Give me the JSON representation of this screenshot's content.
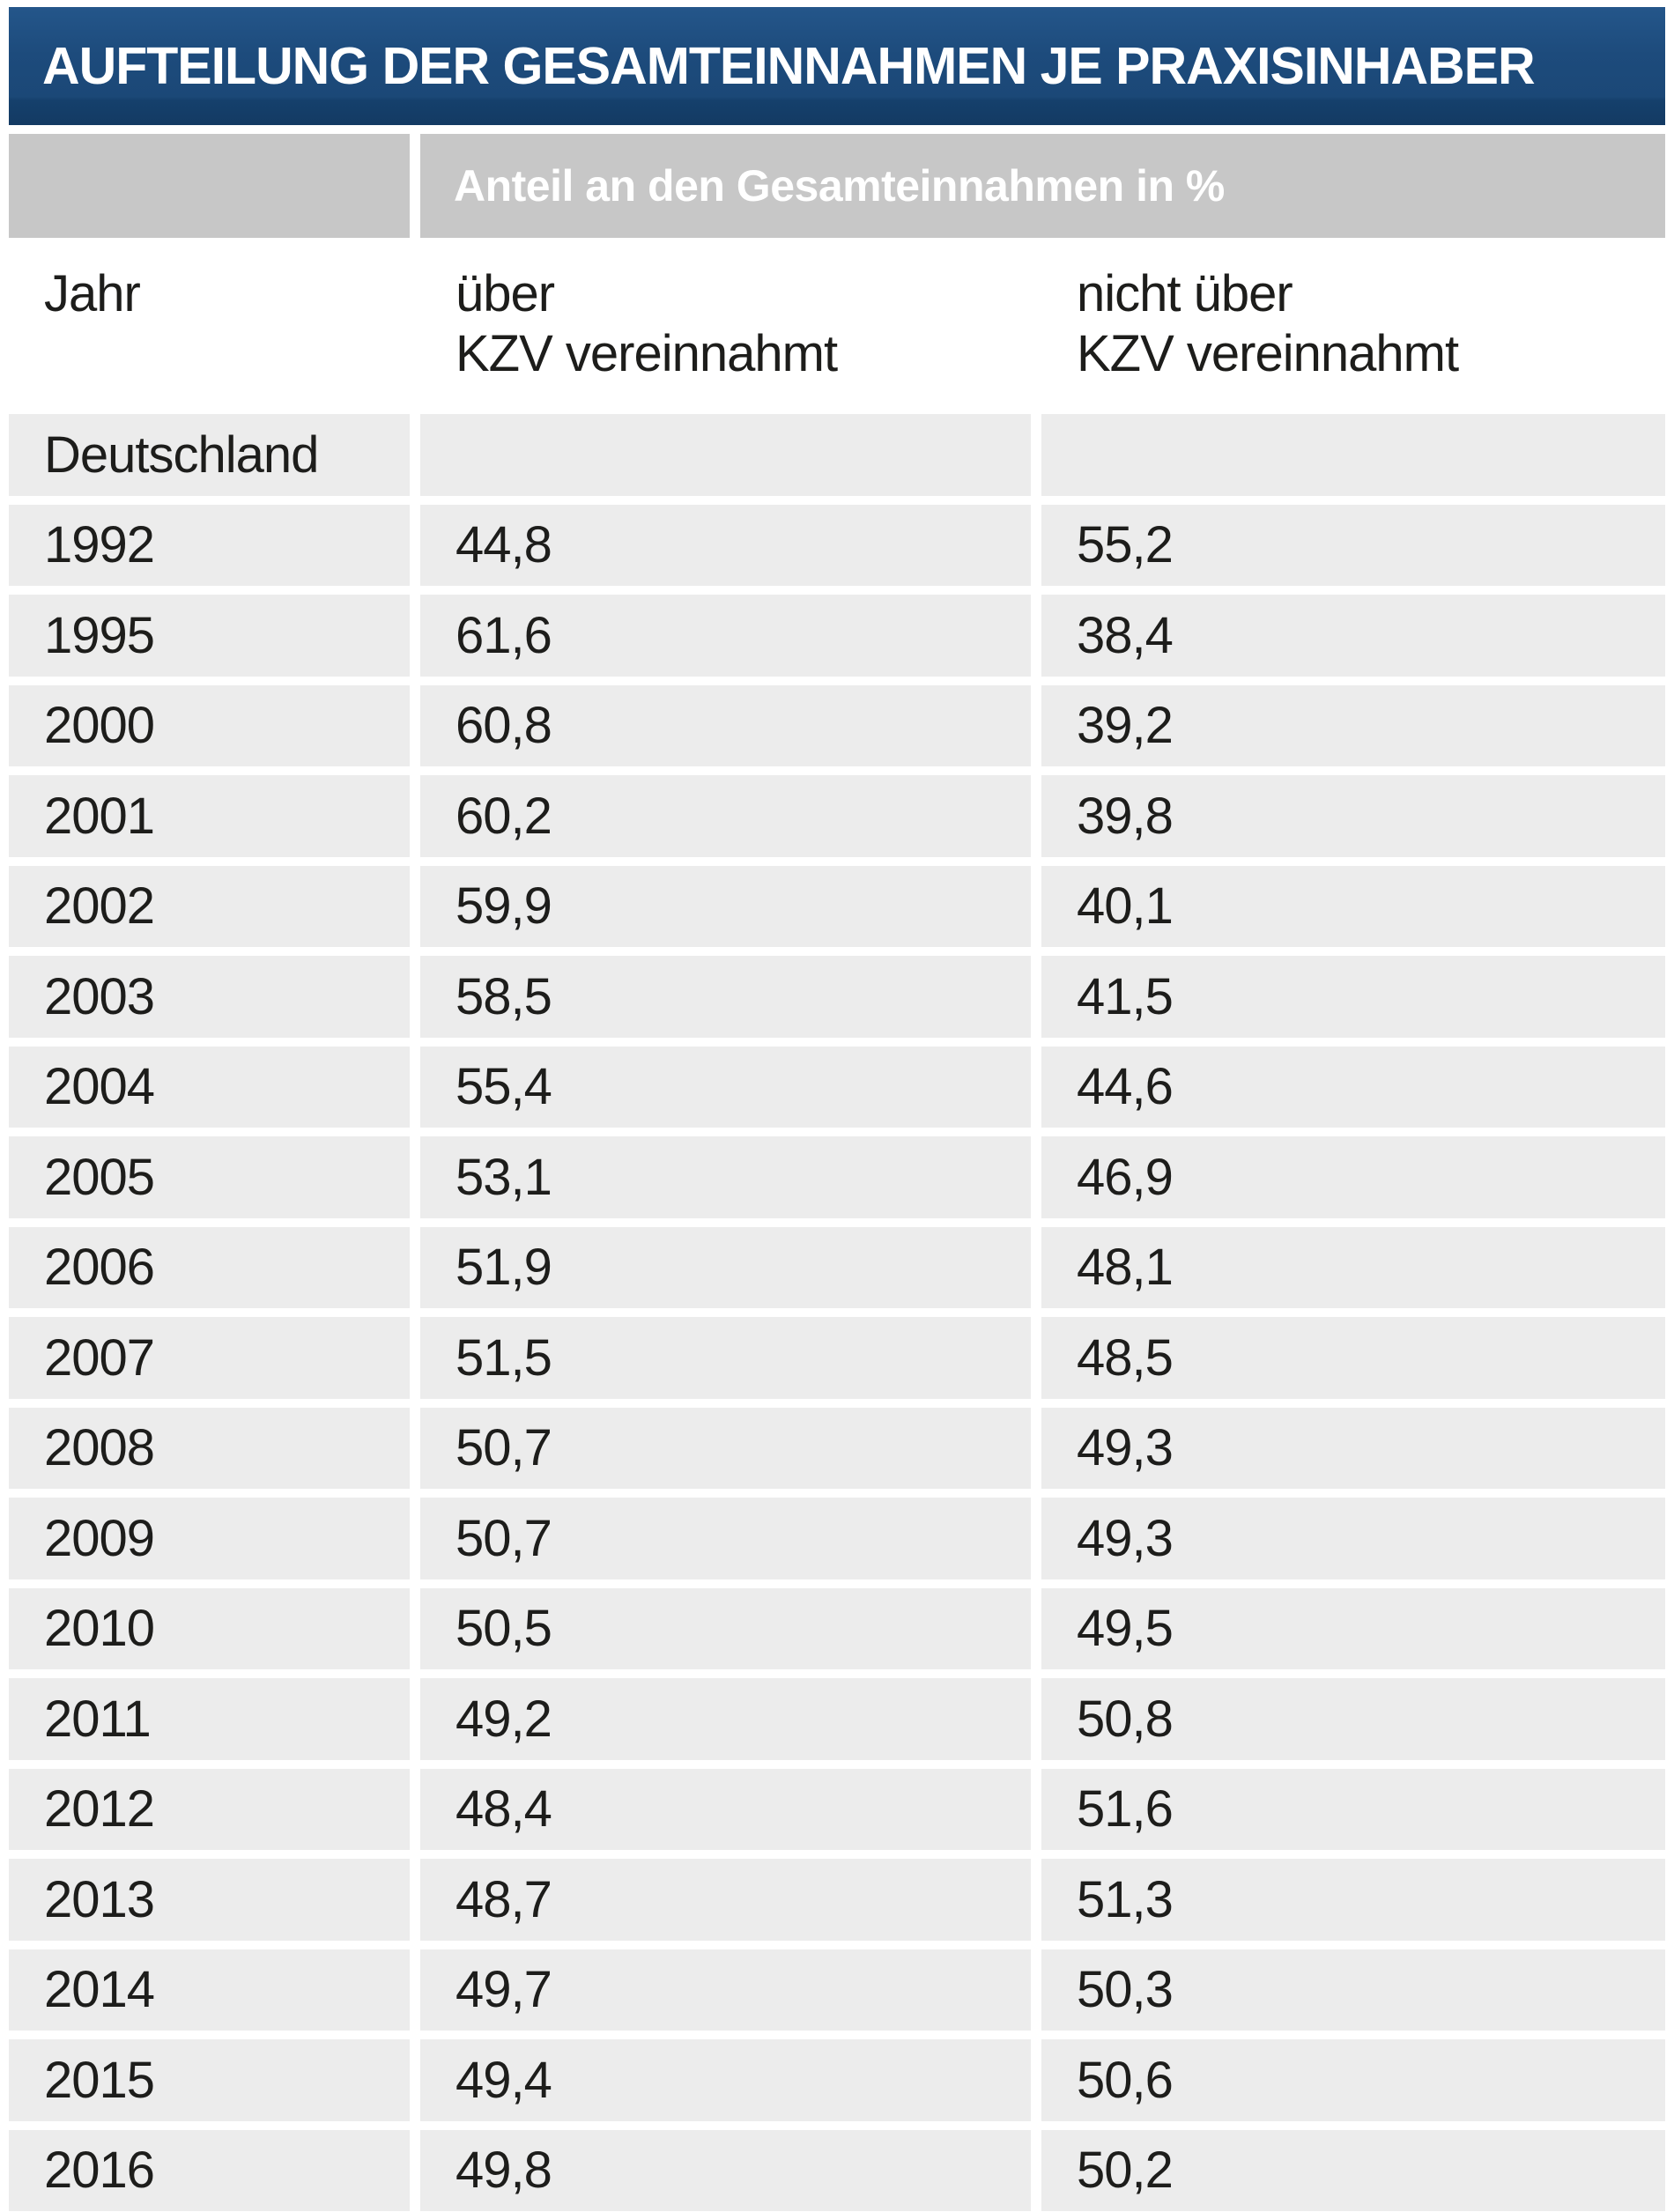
{
  "title": "AUFTEILUNG DER GESAMTEINNAHMEN JE PRAXISINHABER",
  "table": {
    "band_header": "Anteil an den Gesamteinnahmen in %",
    "columns": [
      {
        "label": "Jahr"
      },
      {
        "label": "über\nKZV vereinnahmt"
      },
      {
        "label": "nicht über\nKZV vereinnahmt"
      }
    ],
    "region_label": "Deutschland",
    "rows": [
      {
        "year": "Deutschland",
        "kzv": "",
        "nicht_kzv": ""
      },
      {
        "year": "1992",
        "kzv": "44,8",
        "nicht_kzv": "55,2"
      },
      {
        "year": "1995",
        "kzv": "61,6",
        "nicht_kzv": "38,4"
      },
      {
        "year": "2000",
        "kzv": "60,8",
        "nicht_kzv": "39,2"
      },
      {
        "year": "2001",
        "kzv": "60,2",
        "nicht_kzv": "39,8"
      },
      {
        "year": "2002",
        "kzv": "59,9",
        "nicht_kzv": "40,1"
      },
      {
        "year": "2003",
        "kzv": "58,5",
        "nicht_kzv": "41,5"
      },
      {
        "year": "2004",
        "kzv": "55,4",
        "nicht_kzv": "44,6"
      },
      {
        "year": "2005",
        "kzv": "53,1",
        "nicht_kzv": "46,9"
      },
      {
        "year": "2006",
        "kzv": "51,9",
        "nicht_kzv": "48,1"
      },
      {
        "year": "2007",
        "kzv": "51,5",
        "nicht_kzv": "48,5"
      },
      {
        "year": "2008",
        "kzv": "50,7",
        "nicht_kzv": "49,3"
      },
      {
        "year": "2009",
        "kzv": "50,7",
        "nicht_kzv": "49,3"
      },
      {
        "year": "2010",
        "kzv": "50,5",
        "nicht_kzv": "49,5"
      },
      {
        "year": "2011",
        "kzv": "49,2",
        "nicht_kzv": "50,8"
      },
      {
        "year": "2012",
        "kzv": "48,4",
        "nicht_kzv": "51,6"
      },
      {
        "year": "2013",
        "kzv": "48,7",
        "nicht_kzv": "51,3"
      },
      {
        "year": "2014",
        "kzv": "49,7",
        "nicht_kzv": "50,3"
      },
      {
        "year": "2015",
        "kzv": "49,4",
        "nicht_kzv": "50,6"
      },
      {
        "year": "2016",
        "kzv": "49,8",
        "nicht_kzv": "50,2"
      }
    ]
  },
  "colors": {
    "title_bar_blue": "#1d4b7c",
    "title_bar_dark_stripe": "#133a63",
    "band_gray": "#c7c7c7",
    "row_gray": "#ececec",
    "text_dark": "#1d1d1b",
    "text_white": "#ffffff"
  },
  "chart_data": {
    "type": "table",
    "title": "Aufteilung der Gesamteinnahmen je Praxisinhaber",
    "group_header": "Anteil an den Gesamteinnahmen in %",
    "columns": [
      "Jahr",
      "über KZV vereinnahmt",
      "nicht über KZV vereinnahmt"
    ],
    "region": "Deutschland",
    "unit": "%",
    "rows": [
      [
        "1992",
        44.8,
        55.2
      ],
      [
        "1995",
        61.6,
        38.4
      ],
      [
        "2000",
        60.8,
        39.2
      ],
      [
        "2001",
        60.2,
        39.8
      ],
      [
        "2002",
        59.9,
        40.1
      ],
      [
        "2003",
        58.5,
        41.5
      ],
      [
        "2004",
        55.4,
        44.6
      ],
      [
        "2005",
        53.1,
        46.9
      ],
      [
        "2006",
        51.9,
        48.1
      ],
      [
        "2007",
        51.5,
        48.5
      ],
      [
        "2008",
        50.7,
        49.3
      ],
      [
        "2009",
        50.7,
        49.3
      ],
      [
        "2010",
        50.5,
        49.5
      ],
      [
        "2011",
        49.2,
        50.8
      ],
      [
        "2012",
        48.4,
        51.6
      ],
      [
        "2013",
        48.7,
        51.3
      ],
      [
        "2014",
        49.7,
        50.3
      ],
      [
        "2015",
        49.4,
        50.6
      ],
      [
        "2016",
        49.8,
        50.2
      ]
    ]
  }
}
